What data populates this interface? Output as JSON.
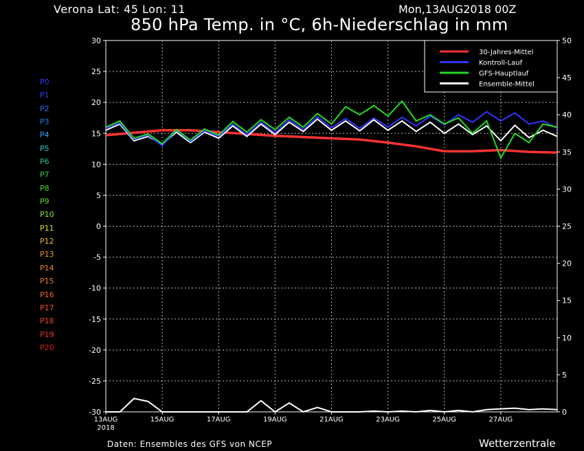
{
  "header": {
    "location": "Verona   Lat: 45 Lon: 11",
    "datetime": "Mon,13AUG2018 00Z",
    "title": "850 hPa Temp. in °C, 6h-Niederschlag in mm"
  },
  "footer": {
    "source": "Daten: Ensembles des GFS von NCEP",
    "brand": "Wetterzentrale"
  },
  "members": [
    {
      "label": "P0",
      "color": "#3333ff"
    },
    {
      "label": "P1",
      "color": "#2244ff"
    },
    {
      "label": "P2",
      "color": "#2266ff"
    },
    {
      "label": "P3",
      "color": "#1188ff"
    },
    {
      "label": "P4",
      "color": "#22aaff"
    },
    {
      "label": "P5",
      "color": "#33cccc"
    },
    {
      "label": "P6",
      "color": "#22cc88"
    },
    {
      "label": "P7",
      "color": "#22dd44"
    },
    {
      "label": "P8",
      "color": "#44dd22"
    },
    {
      "label": "P9",
      "color": "#66dd22"
    },
    {
      "label": "P10",
      "color": "#88ee22"
    },
    {
      "label": "P11",
      "color": "#dddd22"
    },
    {
      "label": "P12",
      "color": "#eebb22"
    },
    {
      "label": "P13",
      "color": "#ee9922"
    },
    {
      "label": "P14",
      "color": "#ee8822"
    },
    {
      "label": "P15",
      "color": "#ee7722"
    },
    {
      "label": "P16",
      "color": "#ee6622"
    },
    {
      "label": "P17",
      "color": "#ee5522"
    },
    {
      "label": "P18",
      "color": "#ee4422"
    },
    {
      "label": "P19",
      "color": "#ee3322"
    },
    {
      "label": "P20",
      "color": "#dd2222"
    }
  ],
  "chart_data": {
    "type": "line",
    "x_ticks": [
      "13AUG",
      "15AUG",
      "17AUG",
      "19AUG",
      "21AUG",
      "23AUG",
      "25AUG",
      "27AUG"
    ],
    "x_tick_sublabel": "2018",
    "x_range_days": [
      0,
      16
    ],
    "y_left_ticks": [
      30,
      25,
      20,
      15,
      10,
      5,
      0,
      -5,
      -10,
      -15,
      -20,
      -25,
      -30
    ],
    "y_left_range": [
      -30,
      30
    ],
    "y_right_ticks": [
      50,
      45,
      40,
      35,
      30,
      25,
      20,
      15,
      10,
      5,
      0
    ],
    "y_right_range": [
      0,
      50
    ],
    "grid": true,
    "legend_position": "top-right",
    "legend": [
      {
        "name": "30-Jahres-Mittel",
        "color": "#ff3333"
      },
      {
        "name": "Kontroll-Lauf",
        "color": "#3333ff"
      },
      {
        "name": "GFS-Hauptlauf",
        "color": "#22dd22"
      },
      {
        "name": "Ensemble-Mittel",
        "color": "#ffffff"
      }
    ],
    "series": [
      {
        "name": "30-Jahres-Mittel",
        "color": "#ff3333",
        "x": [
          0,
          1,
          2,
          3,
          4,
          5,
          6,
          7,
          8,
          9,
          10,
          11,
          12,
          13,
          14,
          15,
          16
        ],
        "y": [
          14.7,
          15.1,
          15.5,
          15.5,
          15.2,
          14.9,
          14.6,
          14.4,
          14.2,
          14.0,
          13.5,
          12.9,
          12.1,
          12.1,
          12.3,
          12.0,
          11.9
        ]
      },
      {
        "name": "Ensemble-Mittel",
        "color": "#ffffff",
        "x": [
          0,
          0.5,
          1,
          1.5,
          2,
          2.5,
          3,
          3.5,
          4,
          4.5,
          5,
          5.5,
          6,
          6.5,
          7,
          7.5,
          8,
          8.5,
          9,
          9.5,
          10,
          10.5,
          11,
          11.5,
          12,
          12.5,
          13,
          13.5,
          14,
          14.5,
          15,
          15.5,
          16
        ],
        "y": [
          15.5,
          16.5,
          13.8,
          14.5,
          13.2,
          15.2,
          13.5,
          15.2,
          14.2,
          16.2,
          14.5,
          16.5,
          14.8,
          16.8,
          15.3,
          17.3,
          15.5,
          17.0,
          15.4,
          17.2,
          15.5,
          17.0,
          15.3,
          16.8,
          15.0,
          16.5,
          14.8,
          16.2,
          13.8,
          16.3,
          14.3,
          15.5,
          14.5
        ]
      },
      {
        "name": "Kontroll-Lauf",
        "color": "#3333ff",
        "x": [
          0,
          0.5,
          1,
          1.5,
          2,
          2.5,
          3,
          3.5,
          4,
          4.5,
          5,
          5.5,
          6,
          6.5,
          7,
          7.5,
          8,
          8.5,
          9,
          9.5,
          10,
          10.5,
          11,
          11.5,
          12,
          12.5,
          13,
          13.5,
          14,
          14.5,
          15,
          15.5,
          16
        ],
        "y": [
          15.8,
          16.7,
          14.0,
          14.7,
          13.0,
          15.5,
          13.7,
          15.4,
          14.5,
          16.5,
          14.8,
          16.8,
          15.1,
          17.2,
          15.6,
          17.7,
          15.9,
          17.4,
          15.8,
          17.5,
          16.0,
          17.6,
          16.2,
          17.8,
          16.4,
          18.0,
          16.8,
          18.5,
          17.0,
          18.3,
          16.5,
          17.0,
          15.8
        ]
      },
      {
        "name": "GFS-Hauptlauf",
        "color": "#22dd22",
        "x": [
          0,
          0.5,
          1,
          1.5,
          2,
          2.5,
          3,
          3.5,
          4,
          4.5,
          5,
          5.5,
          6,
          6.5,
          7,
          7.5,
          8,
          8.5,
          9,
          9.5,
          10,
          10.5,
          11,
          11.5,
          12,
          12.5,
          13,
          13.5,
          14,
          14.5,
          15,
          15.5,
          16
        ],
        "y": [
          16.0,
          17.0,
          14.2,
          14.9,
          13.3,
          15.6,
          13.9,
          15.7,
          14.7,
          16.9,
          15.2,
          17.2,
          15.6,
          17.6,
          16.0,
          18.2,
          16.5,
          19.3,
          18.0,
          19.5,
          17.8,
          20.2,
          17.0,
          18.0,
          16.5,
          17.5,
          15.0,
          17.0,
          11.0,
          15.0,
          13.5,
          16.5,
          16.0
        ]
      }
    ],
    "precip_mean": {
      "x": [
        0,
        0.5,
        1,
        1.5,
        2,
        2.5,
        3,
        3.5,
        4,
        4.5,
        5,
        5.5,
        6,
        6.5,
        7,
        7.5,
        8,
        8.5,
        9,
        9.5,
        10,
        10.5,
        11,
        11.5,
        12,
        12.5,
        13,
        13.5,
        14,
        14.5,
        15,
        15.5,
        16
      ],
      "y": [
        0,
        0,
        1.8,
        1.4,
        0,
        0,
        0,
        0,
        0,
        0,
        0,
        1.5,
        0,
        1.2,
        0,
        0.6,
        0,
        0,
        0,
        0.1,
        0,
        0.1,
        0,
        0.2,
        0,
        0.2,
        0,
        0.3,
        0.4,
        0.5,
        0.3,
        0.4,
        0.3
      ]
    }
  }
}
